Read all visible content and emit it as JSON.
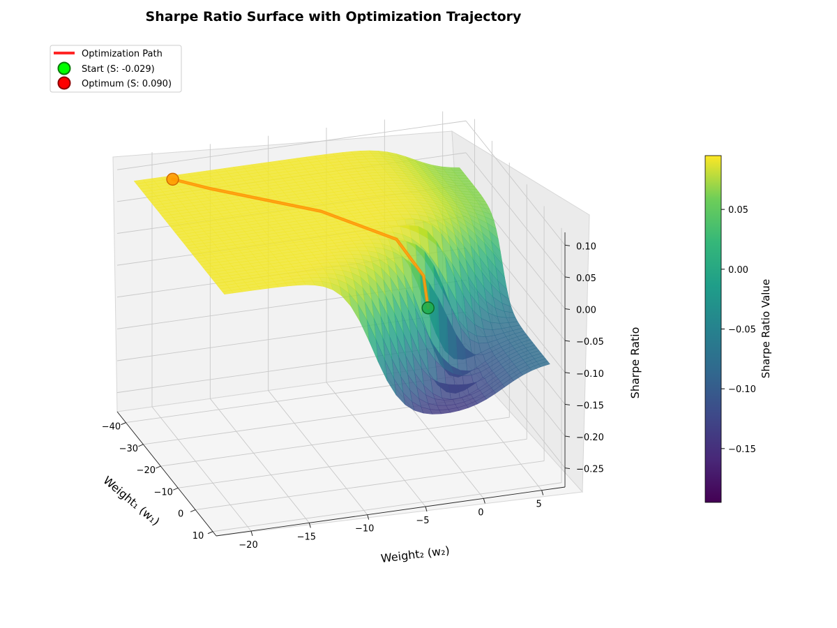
{
  "chart_data": {
    "type": "surface",
    "title": "Sharpe Ratio Surface with Optimization Trajectory",
    "xlabel": "Weight₁ (w₁)",
    "ylabel": "Weight₂ (w₂)",
    "zlabel": "Sharpe Ratio",
    "x_ticks": [
      "−40",
      "−30",
      "−20",
      "−10",
      "0",
      "10"
    ],
    "y_ticks": [
      "−20",
      "−15",
      "−10",
      "−5",
      "0",
      "5"
    ],
    "z_ticks": [
      "0.10",
      "0.05",
      "0.00",
      "−0.05",
      "−0.10",
      "−0.15",
      "−0.20",
      "−0.25"
    ],
    "xlim": [
      -45,
      12
    ],
    "ylim": [
      -23,
      7
    ],
    "zlim": [
      -0.28,
      0.12
    ],
    "colormap": "viridis",
    "colorbar": {
      "label": "Sharpe Ratio Value",
      "ticks": [
        "0.05",
        "0.00",
        "−0.05",
        "−0.10",
        "−0.15"
      ],
      "tick_values": [
        0.05,
        0.0,
        -0.05,
        -0.1,
        -0.15
      ],
      "range": [
        -0.195,
        0.095
      ]
    },
    "series": [
      {
        "name": "Optimization Path",
        "color": "#ff0000",
        "points": [
          [
            -3.9,
            -2.4,
            -0.029
          ],
          [
            -4.5,
            -2.7,
            0.02
          ],
          [
            -8,
            -4.5,
            0.07
          ],
          [
            -20,
            -9.2,
            0.085
          ],
          [
            -35,
            -16.5,
            0.088
          ],
          [
            -40.5,
            -18.9,
            0.09
          ]
        ]
      },
      {
        "name": "Start (S: -0.029)",
        "color": "#00ff00",
        "marker": "circle",
        "point": [
          -3.9,
          -2.4,
          -0.029
        ]
      },
      {
        "name": "Optimum (S: 0.090)",
        "color": "#ff0000",
        "marker": "circle",
        "point": [
          -40.5,
          -18.9,
          0.09
        ]
      }
    ],
    "grid": true,
    "legend_position": "top-left"
  }
}
